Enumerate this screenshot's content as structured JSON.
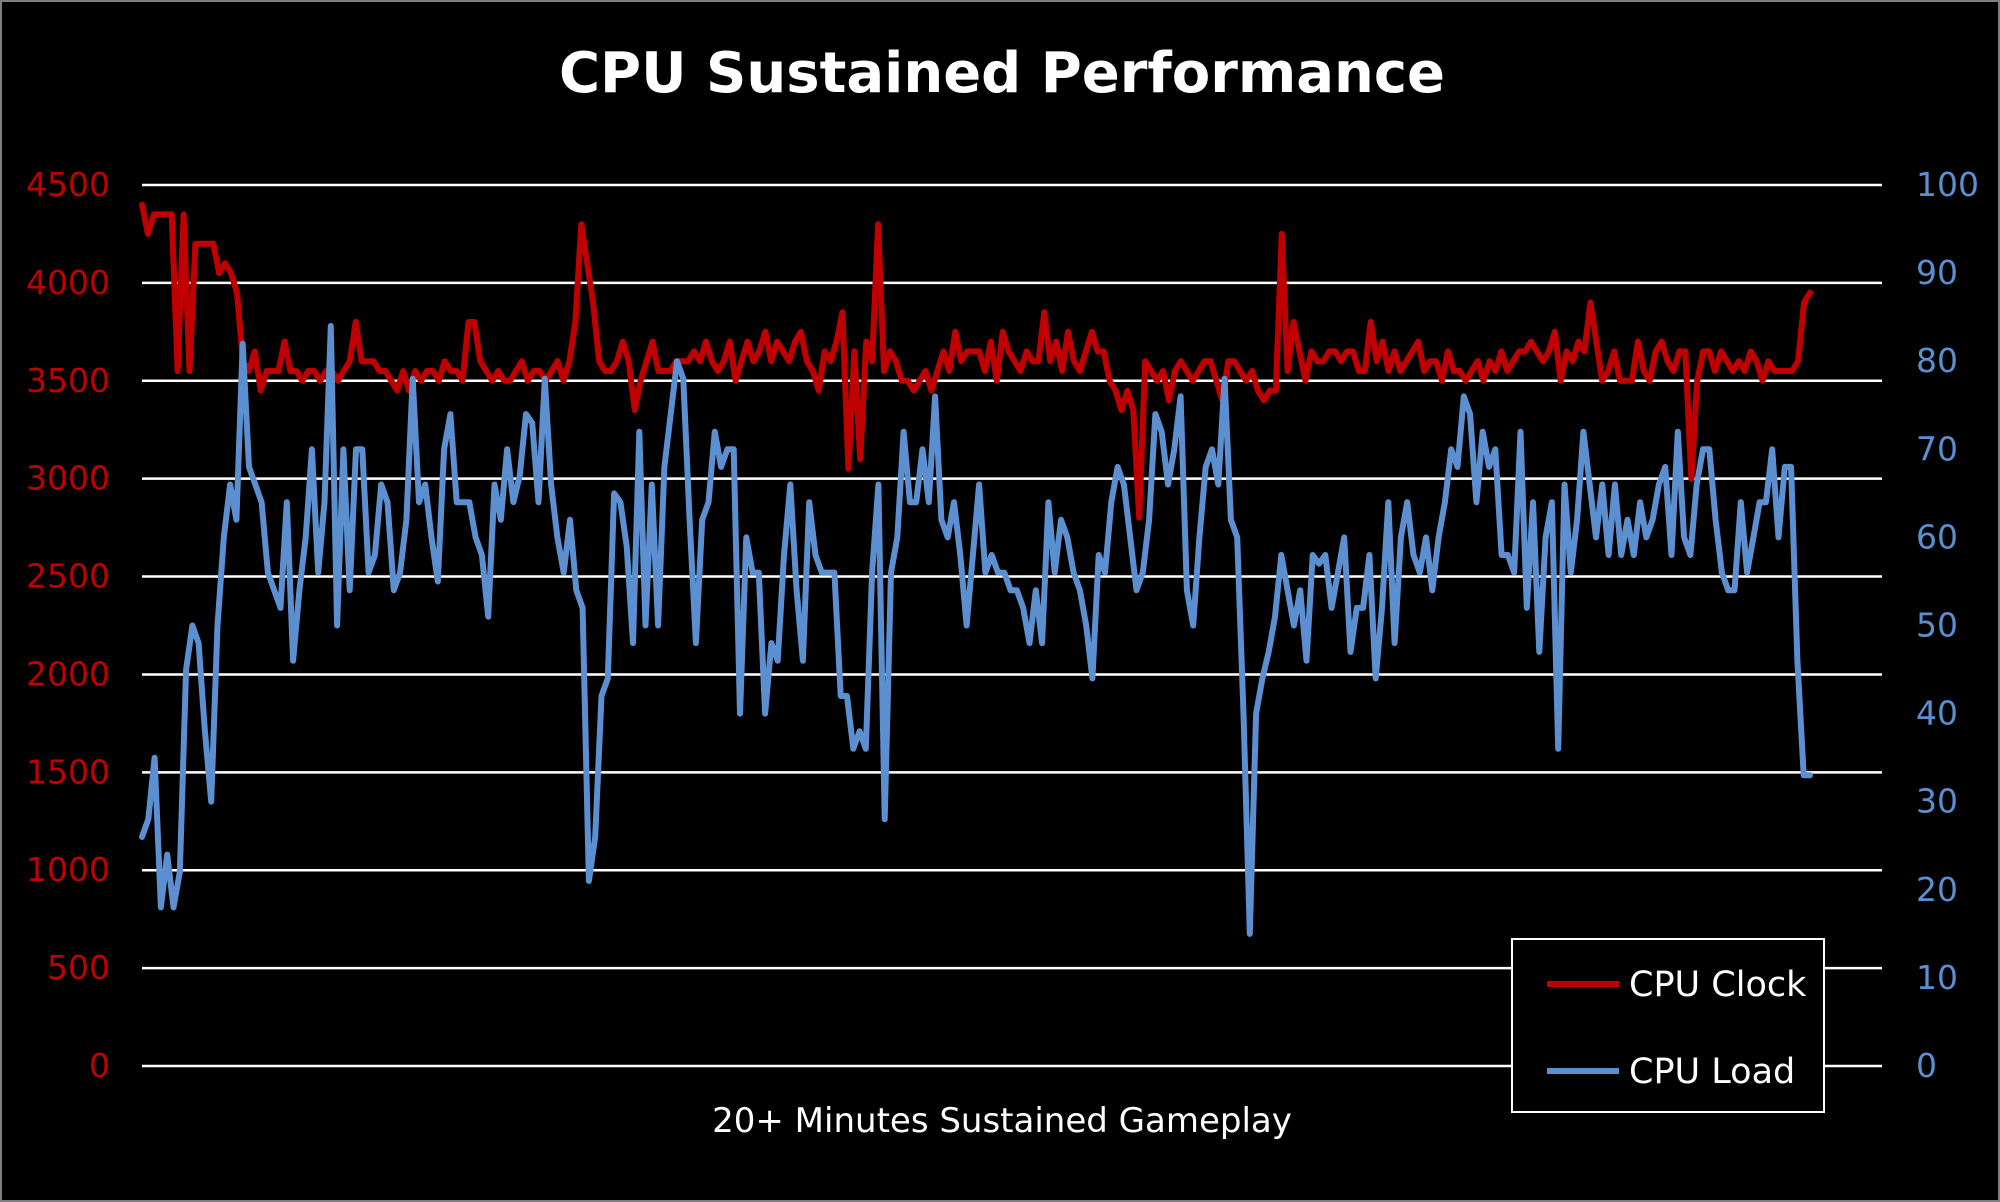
{
  "chart_data": {
    "type": "line",
    "title": "CPU Sustained Performance",
    "xlabel": "20+ Minutes Sustained Gameplay",
    "ylabel_left": "",
    "ylabel_right": "",
    "y_left": {
      "min": 0,
      "max": 4500,
      "step": 500,
      "ticks": [
        0,
        500,
        1000,
        1500,
        2000,
        2500,
        3000,
        3500,
        4000,
        4500
      ]
    },
    "y_right": {
      "min": 0,
      "max": 100,
      "step": 10,
      "ticks": [
        0,
        10,
        20,
        30,
        40,
        50,
        60,
        70,
        80,
        90,
        100
      ]
    },
    "grid": "horizontal",
    "legend_position": "bottom-right",
    "series": [
      {
        "name": "CPU Clock",
        "axis": "left",
        "color": "#c00000",
        "values": [
          4400,
          4250,
          4350,
          4350,
          4350,
          4350,
          3550,
          4350,
          3550,
          4200,
          4200,
          4200,
          4200,
          4050,
          4100,
          4050,
          3950,
          3600,
          3550,
          3650,
          3450,
          3550,
          3550,
          3550,
          3700,
          3550,
          3550,
          3500,
          3550,
          3550,
          3500,
          3550,
          3550,
          3500,
          3550,
          3600,
          3800,
          3600,
          3600,
          3600,
          3550,
          3550,
          3500,
          3450,
          3550,
          3450,
          3550,
          3500,
          3550,
          3550,
          3500,
          3600,
          3550,
          3550,
          3500,
          3800,
          3800,
          3600,
          3550,
          3500,
          3550,
          3500,
          3500,
          3550,
          3600,
          3500,
          3550,
          3550,
          3500,
          3550,
          3600,
          3500,
          3600,
          3800,
          4300,
          4100,
          3900,
          3600,
          3550,
          3550,
          3600,
          3700,
          3600,
          3350,
          3500,
          3600,
          3700,
          3550,
          3550,
          3550,
          3600,
          3600,
          3600,
          3650,
          3600,
          3700,
          3600,
          3550,
          3600,
          3700,
          3500,
          3600,
          3700,
          3600,
          3650,
          3750,
          3600,
          3700,
          3650,
          3600,
          3700,
          3750,
          3600,
          3550,
          3450,
          3650,
          3600,
          3700,
          3850,
          3050,
          3650,
          3100,
          3700,
          3600,
          4300,
          3550,
          3650,
          3600,
          3500,
          3500,
          3450,
          3500,
          3550,
          3450,
          3550,
          3650,
          3550,
          3750,
          3600,
          3650,
          3650,
          3650,
          3550,
          3700,
          3500,
          3750,
          3650,
          3600,
          3550,
          3650,
          3600,
          3600,
          3850,
          3600,
          3700,
          3550,
          3750,
          3600,
          3550,
          3650,
          3750,
          3650,
          3650,
          3500,
          3450,
          3350,
          3450,
          3350,
          2800,
          3600,
          3550,
          3500,
          3550,
          3400,
          3550,
          3600,
          3550,
          3500,
          3550,
          3600,
          3600,
          3500,
          3400,
          3600,
          3600,
          3550,
          3500,
          3550,
          3450,
          3400,
          3450,
          3450,
          4250,
          3550,
          3800,
          3650,
          3500,
          3650,
          3600,
          3600,
          3650,
          3650,
          3600,
          3650,
          3650,
          3550,
          3550,
          3800,
          3600,
          3700,
          3550,
          3650,
          3550,
          3600,
          3650,
          3700,
          3550,
          3600,
          3600,
          3500,
          3650,
          3550,
          3550,
          3500,
          3550,
          3600,
          3500,
          3600,
          3550,
          3650,
          3550,
          3600,
          3650,
          3650,
          3700,
          3650,
          3600,
          3650,
          3750,
          3500,
          3650,
          3600,
          3700,
          3650,
          3900,
          3700,
          3500,
          3550,
          3650,
          3500,
          3500,
          3500,
          3700,
          3550,
          3500,
          3650,
          3700,
          3600,
          3550,
          3650,
          3650,
          3000,
          3500,
          3650,
          3650,
          3550,
          3650,
          3600,
          3550,
          3600,
          3550,
          3650,
          3600,
          3500,
          3600,
          3550,
          3550,
          3550,
          3550,
          3600,
          3900,
          3950
        ]
      },
      {
        "name": "CPU Load",
        "axis": "right",
        "color": "#5b8fd0",
        "values": [
          26,
          28,
          35,
          18,
          24,
          18,
          22,
          45,
          50,
          48,
          38,
          30,
          50,
          60,
          66,
          62,
          82,
          68,
          66,
          64,
          56,
          54,
          52,
          64,
          46,
          54,
          60,
          70,
          56,
          64,
          84,
          50,
          70,
          54,
          70,
          70,
          56,
          58,
          66,
          64,
          54,
          56,
          62,
          78,
          64,
          66,
          60,
          55,
          70,
          74,
          64,
          64,
          64,
          60,
          58,
          51,
          66,
          62,
          70,
          64,
          67,
          74,
          73,
          64,
          78,
          66,
          60,
          56,
          62,
          54,
          52,
          21,
          26,
          42,
          44,
          65,
          64,
          59,
          48,
          72,
          50,
          66,
          50,
          68,
          74,
          80,
          78,
          62,
          48,
          62,
          64,
          72,
          68,
          70,
          70,
          40,
          60,
          56,
          56,
          40,
          48,
          46,
          58,
          66,
          54,
          46,
          64,
          58,
          56,
          56,
          56,
          42,
          42,
          36,
          38,
          36,
          56,
          66,
          28,
          56,
          60,
          72,
          64,
          64,
          70,
          64,
          76,
          62,
          60,
          64,
          58,
          50,
          58,
          66,
          56,
          58,
          56,
          56,
          54,
          54,
          52,
          48,
          54,
          48,
          64,
          56,
          62,
          60,
          56,
          54,
          50,
          44,
          58,
          56,
          64,
          68,
          66,
          60,
          54,
          56,
          62,
          74,
          72,
          66,
          70,
          76,
          54,
          50,
          60,
          68,
          70,
          66,
          78,
          62,
          60,
          40,
          15,
          40,
          44,
          47,
          51,
          58,
          54,
          50,
          54,
          46,
          58,
          57,
          58,
          52,
          56,
          60,
          47,
          52,
          52,
          58,
          44,
          52,
          64,
          48,
          60,
          64,
          58,
          56,
          60,
          54,
          60,
          64,
          70,
          68,
          76,
          74,
          64,
          72,
          68,
          70,
          58,
          58,
          56,
          72,
          52,
          64,
          47,
          60,
          64,
          36,
          66,
          56,
          62,
          72,
          66,
          60,
          66,
          58,
          66,
          58,
          62,
          58,
          64,
          60,
          62,
          66,
          68,
          58,
          72,
          60,
          58,
          66,
          70,
          70,
          62,
          56,
          54,
          54,
          64,
          56,
          60,
          64,
          64,
          70,
          60,
          68,
          68,
          46,
          33,
          33
        ]
      }
    ]
  }
}
